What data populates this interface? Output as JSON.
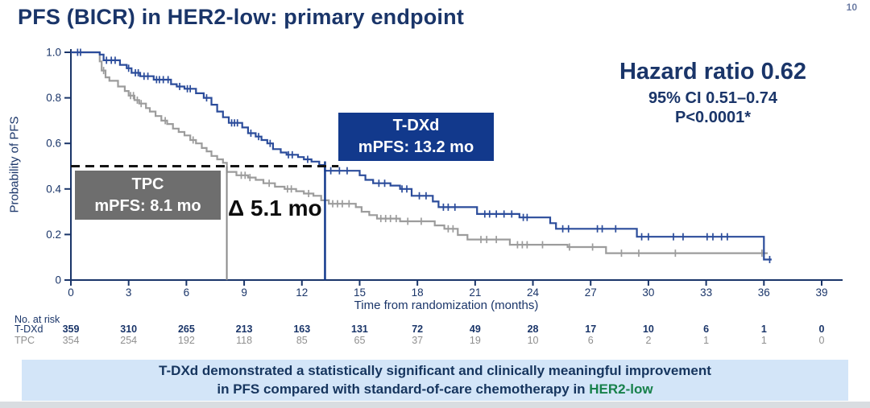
{
  "page": {
    "number": "10"
  },
  "title": "PFS (BICR) in HER2-low: primary endpoint",
  "stats": {
    "hazard_ratio": "Hazard ratio 0.62",
    "confidence_interval": "95% CI 0.51–0.74",
    "p_value": "P<0.0001*"
  },
  "annotations": {
    "tdxd_box": {
      "line1": "T-DXd",
      "line2": "mPFS: 13.2 mo"
    },
    "tpc_box": {
      "line1": "TPC",
      "line2": "mPFS: 8.1 mo"
    },
    "delta": "Δ 5.1 mo"
  },
  "colors": {
    "navy_text": "#1a3569",
    "curve_blue": "#2b4c9b",
    "deep_blue": "#12398c",
    "curve_gray": "#9c9c9c",
    "box_gray": "#6e6e6e",
    "dashed_black": "#141414",
    "banner_bg": "#d3e5f8",
    "green_highlight": "#17814b",
    "risk_gray": "#8f8f8f"
  },
  "chart_data": {
    "type": "line",
    "subtype": "kaplan-meier-step",
    "xlabel": "Time from randomization (months)",
    "ylabel": "Probability of PFS",
    "xlim": [
      0,
      39
    ],
    "ylim": [
      0,
      1.0
    ],
    "xticks": [
      0,
      3,
      6,
      9,
      12,
      15,
      18,
      21,
      24,
      27,
      30,
      33,
      36,
      39
    ],
    "ytick_labels": [
      "0",
      "0.2",
      "0.4",
      "0.6",
      "0.8",
      "1.0"
    ],
    "ytick_values": [
      0,
      0.2,
      0.4,
      0.6,
      0.8,
      1.0
    ],
    "grid": false,
    "reference": {
      "median_probability": 0.5,
      "dash_line_x_end_month": 13.9,
      "tpc_median_month": 8.1,
      "tdxd_median_month": 13.2,
      "delta_months": 5.1
    },
    "series": [
      {
        "name": "TPC",
        "color": "#9c9c9c",
        "median_pfs_months": 8.1,
        "end_month": 36.2,
        "steps": [
          [
            0,
            1.0
          ],
          [
            1.5,
            0.96
          ],
          [
            1.6,
            0.92
          ],
          [
            1.8,
            0.89
          ],
          [
            2.0,
            0.875
          ],
          [
            2.45,
            0.85
          ],
          [
            2.8,
            0.83
          ],
          [
            3.0,
            0.81
          ],
          [
            3.3,
            0.79
          ],
          [
            3.55,
            0.775
          ],
          [
            3.9,
            0.755
          ],
          [
            4.1,
            0.74
          ],
          [
            4.4,
            0.72
          ],
          [
            4.7,
            0.7
          ],
          [
            5.0,
            0.685
          ],
          [
            5.3,
            0.665
          ],
          [
            5.6,
            0.65
          ],
          [
            5.9,
            0.635
          ],
          [
            6.2,
            0.615
          ],
          [
            6.5,
            0.6
          ],
          [
            6.8,
            0.58
          ],
          [
            7.05,
            0.565
          ],
          [
            7.3,
            0.545
          ],
          [
            7.6,
            0.53
          ],
          [
            7.9,
            0.515
          ],
          [
            8.1,
            0.475
          ],
          [
            8.6,
            0.46
          ],
          [
            9.2,
            0.45
          ],
          [
            9.6,
            0.44
          ],
          [
            10.0,
            0.425
          ],
          [
            10.6,
            0.41
          ],
          [
            11.1,
            0.4
          ],
          [
            11.7,
            0.39
          ],
          [
            12.1,
            0.38
          ],
          [
            12.6,
            0.37
          ],
          [
            13.0,
            0.35
          ],
          [
            13.4,
            0.335
          ],
          [
            14.8,
            0.32
          ],
          [
            15.1,
            0.3
          ],
          [
            15.5,
            0.285
          ],
          [
            15.9,
            0.27
          ],
          [
            17.1,
            0.258
          ],
          [
            18.9,
            0.24
          ],
          [
            19.4,
            0.225
          ],
          [
            20.1,
            0.198
          ],
          [
            20.6,
            0.178
          ],
          [
            22.8,
            0.155
          ],
          [
            25.8,
            0.145
          ],
          [
            27.8,
            0.118
          ]
        ],
        "censor_months": [
          1.7,
          3.1,
          3.25,
          3.45,
          3.65,
          4.9,
          6.35,
          8.85,
          9.05,
          9.3,
          10.3,
          11.25,
          11.45,
          12.35,
          13.6,
          13.85,
          14.1,
          14.45,
          16.1,
          16.35,
          16.6,
          16.9,
          17.5,
          18.2,
          19.6,
          19.85,
          21.3,
          21.6,
          22.1,
          23.2,
          23.45,
          23.7,
          24.5,
          25.9,
          27.1,
          28.6,
          29.5,
          31.4,
          35.9
        ]
      },
      {
        "name": "T-DXd",
        "color": "#2b4c9b",
        "median_pfs_months": 13.2,
        "end_month": 36.4,
        "steps": [
          [
            0,
            1.0
          ],
          [
            1.5,
            0.99
          ],
          [
            1.7,
            0.965
          ],
          [
            2.55,
            0.945
          ],
          [
            2.9,
            0.93
          ],
          [
            3.15,
            0.91
          ],
          [
            3.6,
            0.895
          ],
          [
            4.3,
            0.88
          ],
          [
            5.2,
            0.86
          ],
          [
            5.5,
            0.85
          ],
          [
            5.9,
            0.84
          ],
          [
            6.5,
            0.82
          ],
          [
            6.9,
            0.8
          ],
          [
            7.3,
            0.77
          ],
          [
            7.6,
            0.74
          ],
          [
            7.9,
            0.715
          ],
          [
            8.2,
            0.69
          ],
          [
            8.9,
            0.67
          ],
          [
            9.2,
            0.645
          ],
          [
            9.6,
            0.63
          ],
          [
            9.9,
            0.615
          ],
          [
            10.2,
            0.6
          ],
          [
            10.5,
            0.575
          ],
          [
            10.9,
            0.56
          ],
          [
            11.2,
            0.55
          ],
          [
            11.8,
            0.54
          ],
          [
            12.1,
            0.53
          ],
          [
            12.5,
            0.52
          ],
          [
            12.9,
            0.505
          ],
          [
            13.2,
            0.48
          ],
          [
            15.0,
            0.46
          ],
          [
            15.3,
            0.44
          ],
          [
            15.7,
            0.425
          ],
          [
            16.6,
            0.415
          ],
          [
            17.1,
            0.4
          ],
          [
            17.7,
            0.37
          ],
          [
            18.8,
            0.345
          ],
          [
            19.1,
            0.32
          ],
          [
            21.1,
            0.29
          ],
          [
            23.3,
            0.275
          ],
          [
            24.9,
            0.25
          ],
          [
            25.2,
            0.225
          ],
          [
            29.4,
            0.19
          ],
          [
            36.0,
            0.09
          ]
        ],
        "censor_months": [
          0.35,
          0.5,
          1.85,
          2.1,
          2.3,
          3.0,
          3.35,
          3.5,
          3.8,
          4.0,
          4.45,
          4.6,
          4.8,
          5.05,
          5.65,
          6.05,
          6.2,
          7.05,
          8.35,
          8.5,
          8.65,
          9.35,
          9.75,
          10.35,
          11.3,
          11.5,
          12.3,
          13.5,
          13.95,
          14.35,
          16.0,
          16.3,
          17.2,
          17.45,
          18.1,
          18.45,
          19.35,
          19.6,
          19.95,
          21.5,
          21.75,
          22.1,
          22.5,
          22.9,
          23.5,
          23.7,
          25.55,
          25.85,
          27.35,
          27.6,
          28.3,
          29.65,
          30.0,
          31.3,
          31.8,
          33.05,
          33.35,
          33.8,
          34.1,
          36.3
        ]
      }
    ]
  },
  "risk_table": {
    "label": "No. at risk",
    "months": [
      0,
      3,
      6,
      9,
      12,
      15,
      18,
      21,
      24,
      27,
      30,
      33,
      36,
      39
    ],
    "rows": [
      {
        "name": "T-DXd",
        "color": "#1a3569",
        "bold": true,
        "values": [
          359,
          310,
          265,
          213,
          163,
          131,
          72,
          49,
          28,
          17,
          10,
          6,
          1,
          0
        ]
      },
      {
        "name": "TPC",
        "color": "#8f8f8f",
        "bold": false,
        "values": [
          354,
          254,
          192,
          118,
          85,
          65,
          37,
          19,
          10,
          6,
          2,
          1,
          1,
          0
        ]
      }
    ]
  },
  "banner": {
    "line1": "T-DXd demonstrated a statistically significant and clinically meaningful improvement",
    "line2_prefix": "in PFS compared with standard-of-care chemotherapy in ",
    "line2_highlight": "HER2-low"
  }
}
